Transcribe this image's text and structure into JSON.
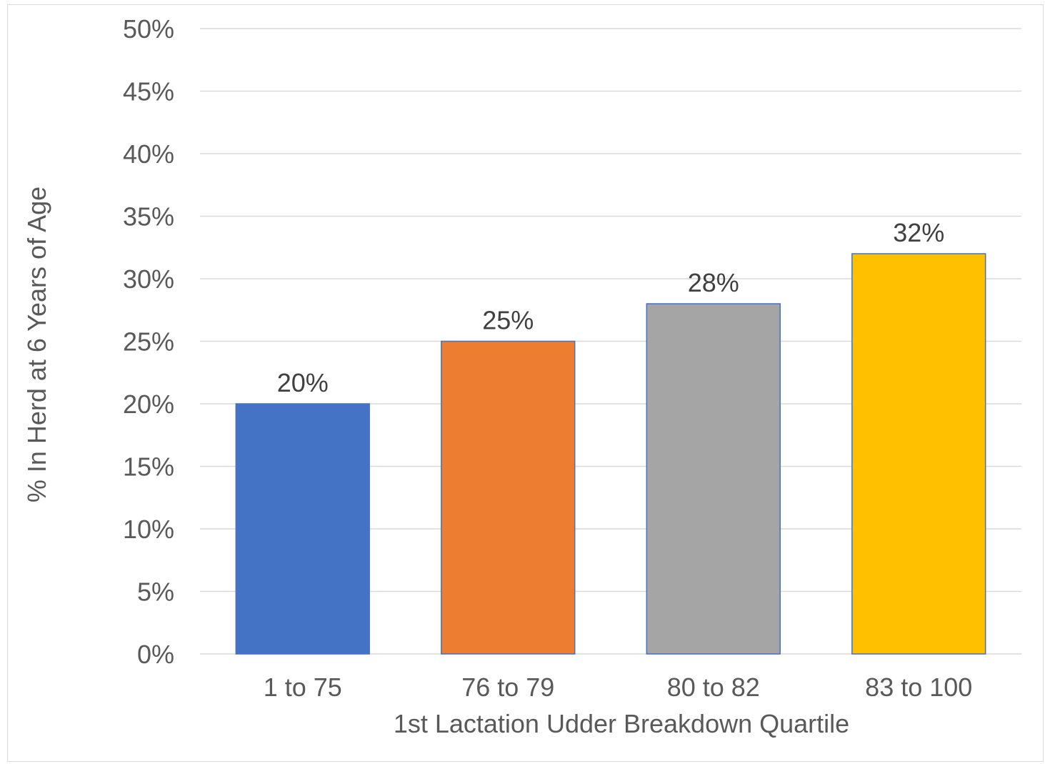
{
  "chart_data": {
    "type": "bar",
    "title": "",
    "xlabel": "1st Lactation Udder Breakdown Quartile",
    "ylabel": "% In Herd at 6 Years of Age",
    "categories": [
      "1 to 75",
      "76 to 79",
      "80 to 82",
      "83 to 100"
    ],
    "values": [
      20,
      25,
      28,
      32
    ],
    "data_labels": [
      "20%",
      "25%",
      "28%",
      "32%"
    ],
    "colors": [
      "#4472C4",
      "#ED7D31",
      "#A5A5A5",
      "#FFC000"
    ],
    "bar_border_color": "#4472C4",
    "ylim": [
      0,
      50
    ],
    "yticks": [
      0,
      5,
      10,
      15,
      20,
      25,
      30,
      35,
      40,
      45,
      50
    ],
    "ytick_labels": [
      "0%",
      "5%",
      "10%",
      "15%",
      "20%",
      "25%",
      "30%",
      "35%",
      "40%",
      "45%",
      "50%"
    ],
    "grid": true,
    "gridline_color": "#d9d9d9",
    "legend": "none"
  }
}
